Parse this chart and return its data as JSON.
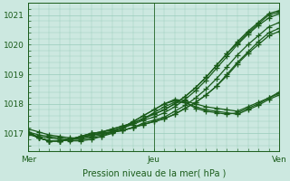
{
  "xlabel": "Pression niveau de la mer( hPa )",
  "ylim": [
    1016.4,
    1021.4
  ],
  "xlim": [
    0,
    48
  ],
  "yticks": [
    1017,
    1018,
    1019,
    1020,
    1021
  ],
  "xtick_positions": [
    0,
    24,
    48
  ],
  "xtick_labels": [
    "Mer",
    "Jeu",
    "Ven"
  ],
  "bg_color": "#cce8e0",
  "grid_color": "#99ccbb",
  "line_color": "#1a5c1a",
  "marker": "+",
  "markersize": 4,
  "linewidth": 0.9,
  "lines": [
    [
      1017.05,
      1016.85,
      1016.75,
      1016.75,
      1016.8,
      1016.9,
      1017.0,
      1017.05,
      1017.15,
      1017.25,
      1017.35,
      1017.5,
      1017.65,
      1017.8,
      1018.0,
      1018.25,
      1018.55,
      1018.9,
      1019.3,
      1019.7,
      1020.1,
      1020.45,
      1020.75,
      1021.05,
      1021.15
    ],
    [
      1017.05,
      1016.85,
      1016.75,
      1016.75,
      1016.8,
      1016.9,
      1017.0,
      1017.05,
      1017.15,
      1017.25,
      1017.35,
      1017.5,
      1017.65,
      1017.8,
      1018.0,
      1018.25,
      1018.55,
      1018.9,
      1019.3,
      1019.7,
      1020.05,
      1020.4,
      1020.7,
      1021.0,
      1021.1
    ],
    [
      1017.05,
      1016.85,
      1016.75,
      1016.75,
      1016.8,
      1016.9,
      1017.0,
      1017.05,
      1017.1,
      1017.2,
      1017.3,
      1017.45,
      1017.55,
      1017.7,
      1017.9,
      1018.15,
      1018.45,
      1018.8,
      1019.2,
      1019.6,
      1020.0,
      1020.35,
      1020.65,
      1020.9,
      1021.05
    ],
    [
      1017.0,
      1016.85,
      1016.75,
      1016.75,
      1016.8,
      1016.85,
      1016.95,
      1017.0,
      1017.05,
      1017.1,
      1017.2,
      1017.35,
      1017.45,
      1017.55,
      1017.75,
      1017.95,
      1018.2,
      1018.5,
      1018.85,
      1019.25,
      1019.65,
      1020.0,
      1020.3,
      1020.6,
      1020.75
    ],
    [
      1017.0,
      1016.85,
      1016.75,
      1016.75,
      1016.8,
      1016.85,
      1016.95,
      1017.0,
      1017.05,
      1017.1,
      1017.2,
      1017.3,
      1017.4,
      1017.5,
      1017.65,
      1017.85,
      1018.05,
      1018.3,
      1018.6,
      1019.0,
      1019.4,
      1019.75,
      1020.1,
      1020.4,
      1020.55
    ],
    [
      1017.0,
      1016.85,
      1016.75,
      1016.75,
      1016.8,
      1016.85,
      1016.95,
      1017.0,
      1017.05,
      1017.1,
      1017.2,
      1017.3,
      1017.4,
      1017.5,
      1017.65,
      1017.85,
      1018.05,
      1018.3,
      1018.6,
      1018.95,
      1019.35,
      1019.7,
      1020.0,
      1020.3,
      1020.45
    ],
    [
      1016.95,
      1016.9,
      1016.85,
      1016.8,
      1016.75,
      1016.75,
      1016.8,
      1016.9,
      1017.05,
      1017.2,
      1017.4,
      1017.6,
      1017.8,
      1018.0,
      1018.1,
      1018.05,
      1017.85,
      1017.75,
      1017.7,
      1017.65,
      1017.7,
      1017.85,
      1018.0,
      1018.2,
      1018.4
    ],
    [
      1017.15,
      1017.05,
      1016.95,
      1016.9,
      1016.85,
      1016.85,
      1016.9,
      1016.95,
      1017.05,
      1017.2,
      1017.4,
      1017.6,
      1017.8,
      1018.0,
      1018.15,
      1018.1,
      1018.0,
      1017.9,
      1017.85,
      1017.8,
      1017.75,
      1017.9,
      1018.05,
      1018.2,
      1018.35
    ],
    [
      1017.05,
      1016.95,
      1016.9,
      1016.85,
      1016.8,
      1016.8,
      1016.85,
      1016.9,
      1017.0,
      1017.15,
      1017.35,
      1017.5,
      1017.7,
      1017.9,
      1018.05,
      1018.05,
      1017.9,
      1017.8,
      1017.75,
      1017.7,
      1017.65,
      1017.8,
      1017.95,
      1018.15,
      1018.3
    ]
  ]
}
